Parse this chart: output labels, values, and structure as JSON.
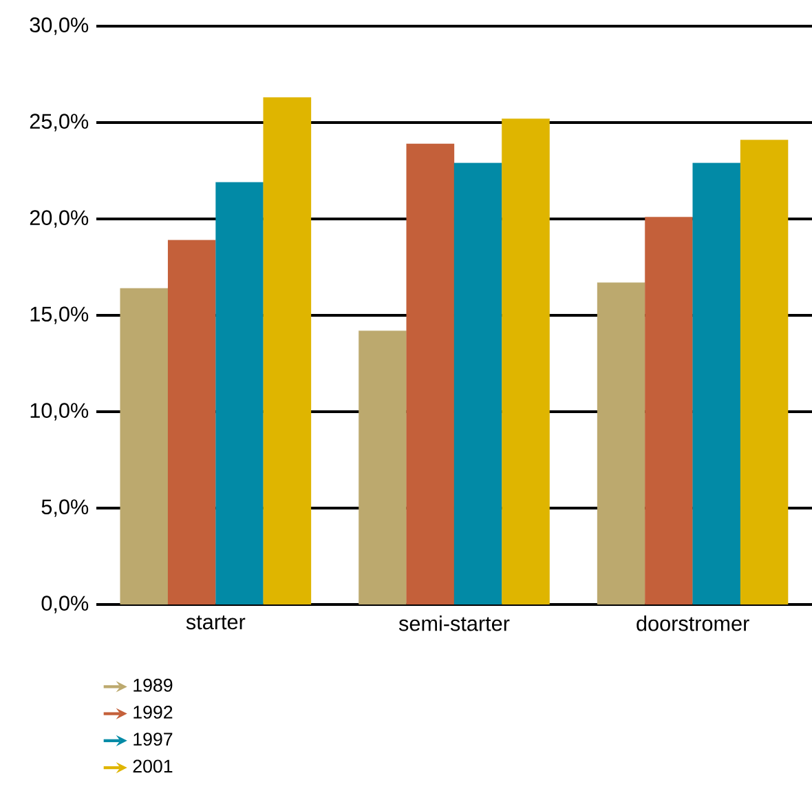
{
  "chart_data": {
    "type": "bar",
    "categories": [
      "starter",
      "semi-starter",
      "doorstromer"
    ],
    "series": [
      {
        "name": "1989",
        "color": "#bca96e",
        "values": [
          16.4,
          14.2,
          16.7
        ]
      },
      {
        "name": "1992",
        "color": "#c4603a",
        "values": [
          18.9,
          23.9,
          20.1
        ]
      },
      {
        "name": "1997",
        "color": "#028aa6",
        "values": [
          21.9,
          22.9,
          22.9
        ]
      },
      {
        "name": "2001",
        "color": "#dfb500",
        "values": [
          26.3,
          25.2,
          24.1
        ]
      }
    ],
    "ylim": [
      0,
      30
    ],
    "yticks": [
      {
        "value": 0,
        "label": "0,0%"
      },
      {
        "value": 5,
        "label": "5,0%"
      },
      {
        "value": 10,
        "label": "10,0%"
      },
      {
        "value": 15,
        "label": "15,0%"
      },
      {
        "value": 20,
        "label": "20,0%"
      },
      {
        "value": 25,
        "label": "25,0%"
      },
      {
        "value": 30,
        "label": "30,0%"
      }
    ],
    "grid": "y",
    "legend": "bottom left"
  }
}
